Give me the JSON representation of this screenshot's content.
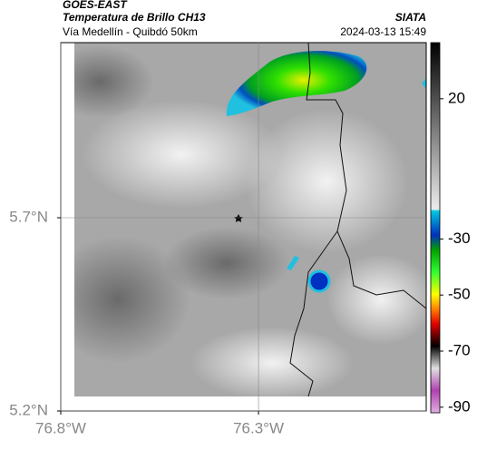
{
  "header": {
    "title": "GOES-EAST",
    "subtitle": "Temperatura de Brillo CH13",
    "route": "Vía Medellín - Quibdó 50km",
    "source": "SIATA",
    "timestamp": "2024-03-13 15:49"
  },
  "map": {
    "xlim": [
      -76.8,
      -75.876
    ],
    "ylim": [
      5.2,
      6.153
    ],
    "xticks": [
      {
        "value": -76.8,
        "label": "76.8°W"
      },
      {
        "value": -76.3,
        "label": "76.3°W"
      }
    ],
    "yticks": [
      {
        "value": 5.2,
        "label": "5.2°N"
      },
      {
        "value": 5.7,
        "label": "5.7°N"
      }
    ],
    "grid": true
  },
  "colorbar": {
    "lim": [
      -92,
      40
    ],
    "ticks": [
      20,
      -30,
      -50,
      -70,
      -90
    ]
  }
}
